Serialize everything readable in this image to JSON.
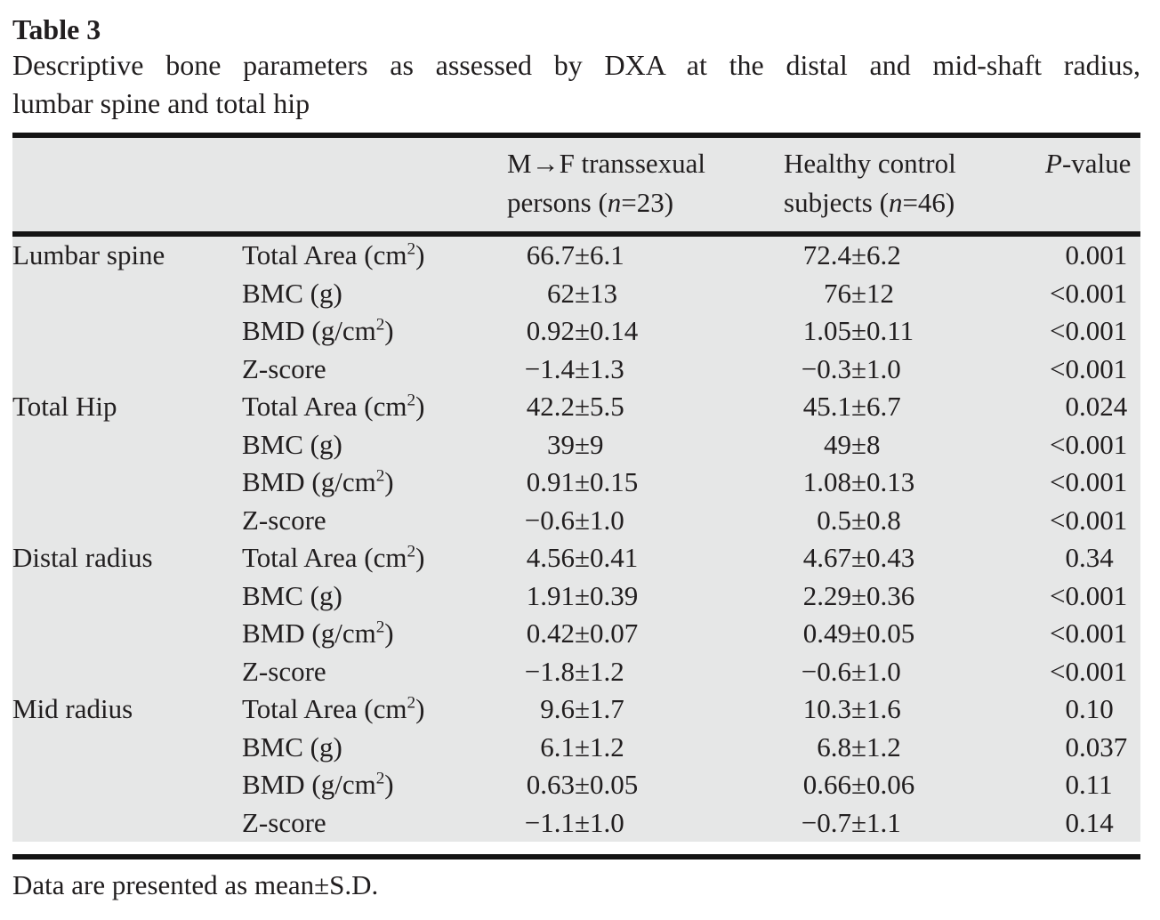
{
  "title": "Table 3",
  "caption_line1": "Descriptive bone parameters as assessed by DXA at the distal and mid-shaft radius,",
  "caption_line2": "lumbar spine and total hip",
  "pm": "±",
  "header": {
    "col3": {
      "line1": "M→F transsexual",
      "line2_pre": "persons (",
      "n": "n",
      "line2_post": "=23)"
    },
    "col4": {
      "line1": "Healthy control",
      "line2_pre": "subjects (",
      "n": "n",
      "line2_post": "=46)"
    },
    "col5": {
      "italic": "P",
      "rest": "-value"
    }
  },
  "sections": [
    {
      "region": "Lumbar spine",
      "rows": [
        {
          "param_pre": "Total Area (cm",
          "param_sup": "2",
          "param_post": ")",
          "g1_mean": "66.7",
          "g1_sd": "6.1",
          "g2_mean": "72.4",
          "g2_sd": "6.2",
          "p_pre": "0",
          "p_frac": ".001"
        },
        {
          "param_pre": "BMC (g)",
          "param_sup": "",
          "param_post": "",
          "g1_mean": "62",
          "g1_sd": "13",
          "g2_mean": "76",
          "g2_sd": "12",
          "p_pre": "<0",
          "p_frac": ".001"
        },
        {
          "param_pre": "BMD (g/cm",
          "param_sup": "2",
          "param_post": ")",
          "g1_mean": "0.92",
          "g1_sd": "0.14",
          "g2_mean": "1.05",
          "g2_sd": "0.11",
          "p_pre": "<0",
          "p_frac": ".001"
        },
        {
          "param_pre": "Z-score",
          "param_sup": "",
          "param_post": "",
          "g1_mean": "−1.4",
          "g1_sd": "1.3",
          "g2_mean": "−0.3",
          "g2_sd": "1.0",
          "p_pre": "<0",
          "p_frac": ".001"
        }
      ]
    },
    {
      "region": "Total Hip",
      "rows": [
        {
          "param_pre": "Total Area (cm",
          "param_sup": "2",
          "param_post": ")",
          "g1_mean": "42.2",
          "g1_sd": "5.5",
          "g2_mean": "45.1",
          "g2_sd": "6.7",
          "p_pre": "0",
          "p_frac": ".024"
        },
        {
          "param_pre": "BMC (g)",
          "param_sup": "",
          "param_post": "",
          "g1_mean": "39",
          "g1_sd": "9",
          "g2_mean": "49",
          "g2_sd": "8",
          "p_pre": "<0",
          "p_frac": ".001"
        },
        {
          "param_pre": "BMD (g/cm",
          "param_sup": "2",
          "param_post": ")",
          "g1_mean": "0.91",
          "g1_sd": "0.15",
          "g2_mean": "1.08",
          "g2_sd": "0.13",
          "p_pre": "<0",
          "p_frac": ".001"
        },
        {
          "param_pre": "Z-score",
          "param_sup": "",
          "param_post": "",
          "g1_mean": "−0.6",
          "g1_sd": "1.0",
          "g2_mean": "0.5",
          "g2_sd": "0.8",
          "p_pre": "<0",
          "p_frac": ".001"
        }
      ]
    },
    {
      "region": "Distal radius",
      "rows": [
        {
          "param_pre": "Total Area (cm",
          "param_sup": "2",
          "param_post": ")",
          "g1_mean": "4.56",
          "g1_sd": "0.41",
          "g2_mean": "4.67",
          "g2_sd": "0.43",
          "p_pre": "0",
          "p_frac": ".34"
        },
        {
          "param_pre": "BMC (g)",
          "param_sup": "",
          "param_post": "",
          "g1_mean": "1.91",
          "g1_sd": "0.39",
          "g2_mean": "2.29",
          "g2_sd": "0.36",
          "p_pre": "<0",
          "p_frac": ".001"
        },
        {
          "param_pre": "BMD (g/cm",
          "param_sup": "2",
          "param_post": ")",
          "g1_mean": "0.42",
          "g1_sd": "0.07",
          "g2_mean": "0.49",
          "g2_sd": "0.05",
          "p_pre": "<0",
          "p_frac": ".001"
        },
        {
          "param_pre": "Z-score",
          "param_sup": "",
          "param_post": "",
          "g1_mean": "−1.8",
          "g1_sd": "1.2",
          "g2_mean": "−0.6",
          "g2_sd": "1.0",
          "p_pre": "<0",
          "p_frac": ".001"
        }
      ]
    },
    {
      "region": "Mid radius",
      "rows": [
        {
          "param_pre": "Total Area (cm",
          "param_sup": "2",
          "param_post": ")",
          "g1_mean": "9.6",
          "g1_sd": "1.7",
          "g2_mean": "10.3",
          "g2_sd": "1.6",
          "p_pre": "0",
          "p_frac": ".10"
        },
        {
          "param_pre": "BMC (g)",
          "param_sup": "",
          "param_post": "",
          "g1_mean": "6.1",
          "g1_sd": "1.2",
          "g2_mean": "6.8",
          "g2_sd": "1.2",
          "p_pre": "0",
          "p_frac": ".037"
        },
        {
          "param_pre": "BMD (g/cm",
          "param_sup": "2",
          "param_post": ")",
          "g1_mean": "0.63",
          "g1_sd": "0.05",
          "g2_mean": "0.66",
          "g2_sd": "0.06",
          "p_pre": "0",
          "p_frac": ".11"
        },
        {
          "param_pre": "Z-score",
          "param_sup": "",
          "param_post": "",
          "g1_mean": "−1.1",
          "g1_sd": "1.0",
          "g2_mean": "−0.7",
          "g2_sd": "1.1",
          "p_pre": "0",
          "p_frac": ".14"
        }
      ]
    }
  ],
  "footnote": "Data are presented as mean±S.D.",
  "colors": {
    "table_bg": "#e6e7e7",
    "rule": "#141414",
    "text": "#211e1f",
    "page_bg": "#ffffff"
  }
}
